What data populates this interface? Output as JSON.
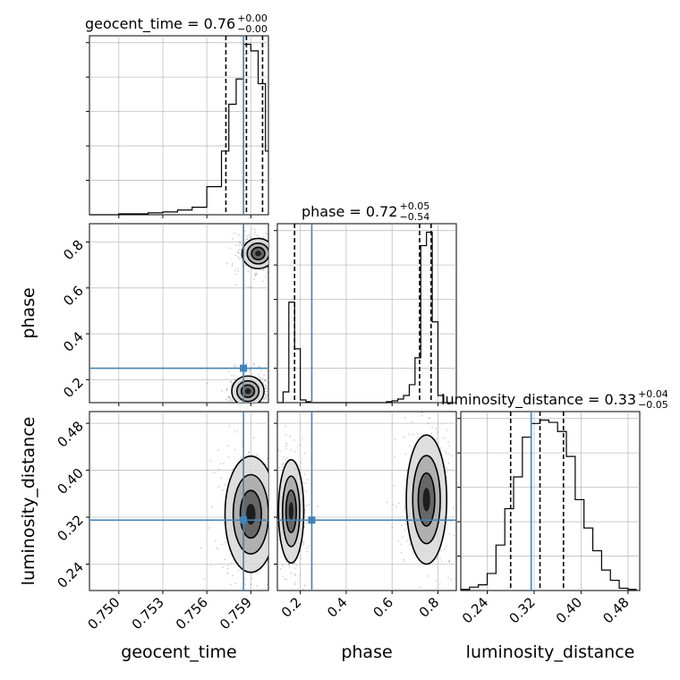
{
  "chart_data": {
    "type": "corner",
    "parameters": [
      "geocent_time",
      "phase",
      "luminosity_distance"
    ],
    "truths": {
      "geocent_time": 0.7585,
      "phase": 0.25,
      "luminosity_distance": 0.315
    },
    "titles": [
      {
        "param": "geocent_time",
        "label": "geocent_time = 0.76",
        "plus": "+0.00",
        "minus": "−0.00"
      },
      {
        "param": "phase",
        "label": "phase = 0.72",
        "plus": "+0.05",
        "minus": "−0.54"
      },
      {
        "param": "luminosity_distance",
        "label": "luminosity_distance = 0.33",
        "plus": "+0.04",
        "minus": "−0.05"
      }
    ],
    "axes": {
      "geocent_time": {
        "range": [
          0.748,
          0.7602
        ],
        "ticks": [
          0.75,
          0.753,
          0.756,
          0.759
        ],
        "tick_labels": [
          "0.750",
          "0.753",
          "0.756",
          "0.759"
        ],
        "label": "geocent_time"
      },
      "phase": {
        "range": [
          0.1,
          0.88
        ],
        "ticks": [
          0.2,
          0.4,
          0.6,
          0.8
        ],
        "tick_labels": [
          "0.2",
          "0.4",
          "0.6",
          "0.8"
        ],
        "label": "phase"
      },
      "luminosity_distance": {
        "range": [
          0.195,
          0.5
        ],
        "ticks": [
          0.24,
          0.32,
          0.4,
          0.48
        ],
        "tick_labels": [
          "0.24",
          "0.32",
          "0.40",
          "0.48"
        ],
        "label": "luminosity_distance"
      }
    },
    "histograms": {
      "geocent_time": {
        "edges": [
          0.748,
          0.749,
          0.75,
          0.751,
          0.752,
          0.753,
          0.754,
          0.755,
          0.756,
          0.757,
          0.7575,
          0.758,
          0.7585,
          0.759,
          0.7595,
          0.76,
          0.7602
        ],
        "counts": [
          0,
          0,
          1,
          1,
          2,
          3,
          5,
          8,
          30,
          68,
          118,
          145,
          182,
          175,
          140,
          68
        ],
        "quantiles": [
          0.7573,
          0.7587,
          0.7598
        ]
      },
      "phase": {
        "edges": [
          0.1,
          0.125,
          0.15,
          0.175,
          0.2,
          0.225,
          0.25,
          0.275,
          0.3,
          0.325,
          0.35,
          0.375,
          0.4,
          0.425,
          0.45,
          0.475,
          0.5,
          0.525,
          0.55,
          0.575,
          0.6,
          0.625,
          0.65,
          0.675,
          0.7,
          0.725,
          0.75,
          0.775,
          0.8,
          0.825,
          0.85
        ],
        "counts": [
          0,
          12,
          112,
          60,
          3,
          1,
          0,
          0,
          0,
          0,
          0,
          0,
          0,
          0,
          0,
          0,
          0,
          0,
          0,
          1,
          2,
          4,
          8,
          20,
          50,
          175,
          190,
          90,
          8,
          0
        ],
        "quantiles": [
          0.175,
          0.72,
          0.77
        ]
      },
      "luminosity_distance": {
        "edges": [
          0.195,
          0.21,
          0.225,
          0.24,
          0.255,
          0.27,
          0.285,
          0.3,
          0.315,
          0.33,
          0.345,
          0.36,
          0.375,
          0.39,
          0.405,
          0.42,
          0.435,
          0.45,
          0.465,
          0.48,
          0.495
        ],
        "counts": [
          1,
          3,
          5,
          15,
          40,
          72,
          100,
          135,
          147,
          150,
          148,
          140,
          118,
          80,
          55,
          35,
          18,
          9,
          2,
          1
        ],
        "quantiles": [
          0.28,
          0.33,
          0.37
        ]
      }
    },
    "density_2d": [
      {
        "x": "geocent_time",
        "y": "phase",
        "clusters": [
          {
            "cx": 0.7595,
            "cy": 0.75,
            "sx": 0.0005,
            "sy": 0.03
          },
          {
            "cx": 0.7588,
            "cy": 0.15,
            "sx": 0.0005,
            "sy": 0.03
          }
        ]
      },
      {
        "x": "geocent_time",
        "y": "luminosity_distance",
        "clusters": [
          {
            "cx": 0.759,
            "cy": 0.325,
            "sx": 0.0008,
            "sy": 0.045
          }
        ]
      },
      {
        "x": "phase",
        "y": "luminosity_distance",
        "clusters": [
          {
            "cx": 0.16,
            "cy": 0.33,
            "sx": 0.025,
            "sy": 0.04
          },
          {
            "cx": 0.75,
            "cy": 0.35,
            "sx": 0.04,
            "sy": 0.05
          }
        ]
      }
    ]
  }
}
